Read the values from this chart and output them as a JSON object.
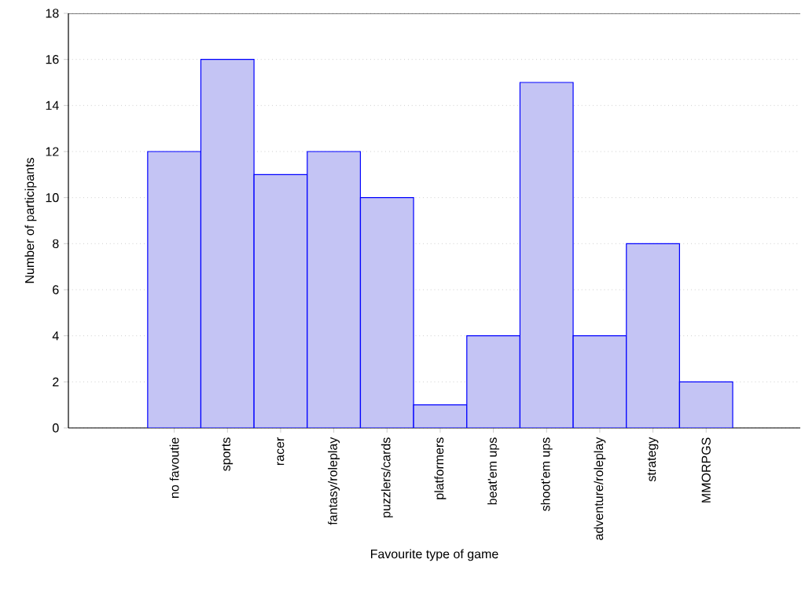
{
  "chart_data": {
    "type": "bar",
    "xlabel": "Favourite type of game",
    "ylabel": "Number of participants",
    "categories": [
      "no favoutie",
      "sports",
      "racer",
      "fantasy/roleplay",
      "puzzlers/cards",
      "platformers",
      "beat'em ups",
      "shoot'em ups",
      "adventure/roleplay",
      "strategy",
      "MMORPGS"
    ],
    "values": [
      12,
      16,
      11,
      12,
      10,
      1,
      4,
      15,
      4,
      8,
      2
    ],
    "color": "#c4c4f4",
    "ylim": [
      0,
      18
    ],
    "yticks": [
      0,
      2,
      4,
      6,
      8,
      10,
      12,
      14,
      16,
      18
    ],
    "grid": "y"
  }
}
